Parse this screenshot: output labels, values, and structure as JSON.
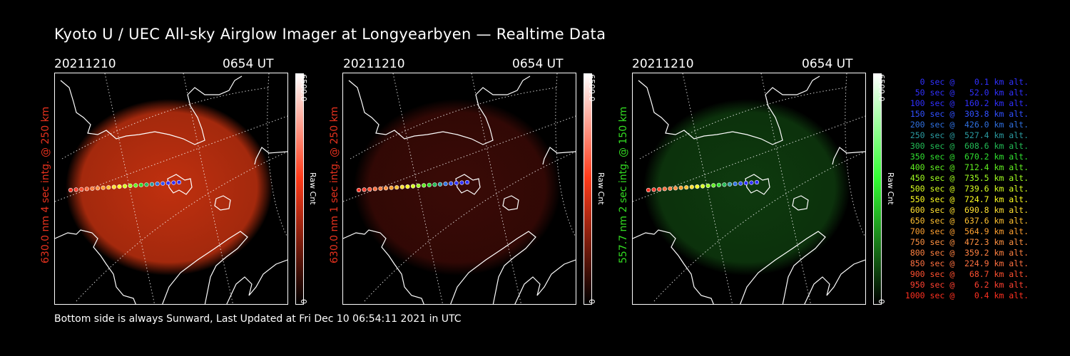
{
  "title": "Kyoto U / UEC All-sky Airglow Imager at Longyearbyen — Realtime Data",
  "footer": "Bottom side is always Sunward, Last Updated at Fri Dec 10 06:54:11 2021 in UTC",
  "panels": [
    {
      "date": "20211210",
      "time": "0654 UT",
      "side_label": "630.0 nm 4 sec intg. @ 250 km",
      "label_color": "#e8321e",
      "cbar_max": "6500.0",
      "cbar_min": "0",
      "cbar_unit": "Raw Cnt",
      "glow": "#c0300f",
      "tint": "#ff3b1a"
    },
    {
      "date": "20211210",
      "time": "0654 UT",
      "side_label": "630.0 nm 1 sec intg. @ 250 km",
      "label_color": "#e8321e",
      "cbar_max": "6500.0",
      "cbar_min": "0",
      "cbar_unit": "Raw Cnt",
      "glow": "#3a0a06",
      "tint": "#ff3b1a"
    },
    {
      "date": "20211210",
      "time": "0654 UT",
      "side_label": "557.7 nm 2 sec intg. @ 150 km",
      "label_color": "#33dd22",
      "cbar_max": "6500.0",
      "cbar_min": "0",
      "cbar_unit": "Raw Cnt",
      "glow": "#0e3a0e",
      "tint": "#33ff33"
    }
  ],
  "legend": [
    {
      "text": "   0 sec @    0.1 km alt.",
      "color": "#3030ff"
    },
    {
      "text": "  50 sec @   52.0 km alt.",
      "color": "#3030ff"
    },
    {
      "text": " 100 sec @  160.2 km alt.",
      "color": "#3030ff"
    },
    {
      "text": " 150 sec @  303.8 km alt.",
      "color": "#3050ff"
    },
    {
      "text": " 200 sec @  426.0 km alt.",
      "color": "#2f70e0"
    },
    {
      "text": " 250 sec @  527.4 km alt.",
      "color": "#2a9aa0"
    },
    {
      "text": " 300 sec @  608.6 km alt.",
      "color": "#22bb55"
    },
    {
      "text": " 350 sec @  670.2 km alt.",
      "color": "#30e030"
    },
    {
      "text": " 400 sec @  712.4 km alt.",
      "color": "#60f020"
    },
    {
      "text": " 450 sec @  735.5 km alt.",
      "color": "#a0ff20"
    },
    {
      "text": " 500 sec @  739.6 km alt.",
      "color": "#d8ff20"
    },
    {
      "text": " 550 sec @  724.7 km alt.",
      "color": "#ffff20"
    },
    {
      "text": " 600 sec @  690.8 km alt.",
      "color": "#ffe030"
    },
    {
      "text": " 650 sec @  637.6 km alt.",
      "color": "#ffc030"
    },
    {
      "text": " 700 sec @  564.9 km alt.",
      "color": "#ffa030"
    },
    {
      "text": " 750 sec @  472.3 km alt.",
      "color": "#ff9040"
    },
    {
      "text": " 800 sec @  359.2 km alt.",
      "color": "#ff8040"
    },
    {
      "text": " 850 sec @  224.9 km alt.",
      "color": "#ff7040"
    },
    {
      "text": " 900 sec @   68.7 km alt.",
      "color": "#ff5030"
    },
    {
      "text": " 950 sec @    6.2 km alt.",
      "color": "#ff4030"
    },
    {
      "text": "1000 sec @    0.4 km alt.",
      "color": "#ff3020"
    }
  ]
}
